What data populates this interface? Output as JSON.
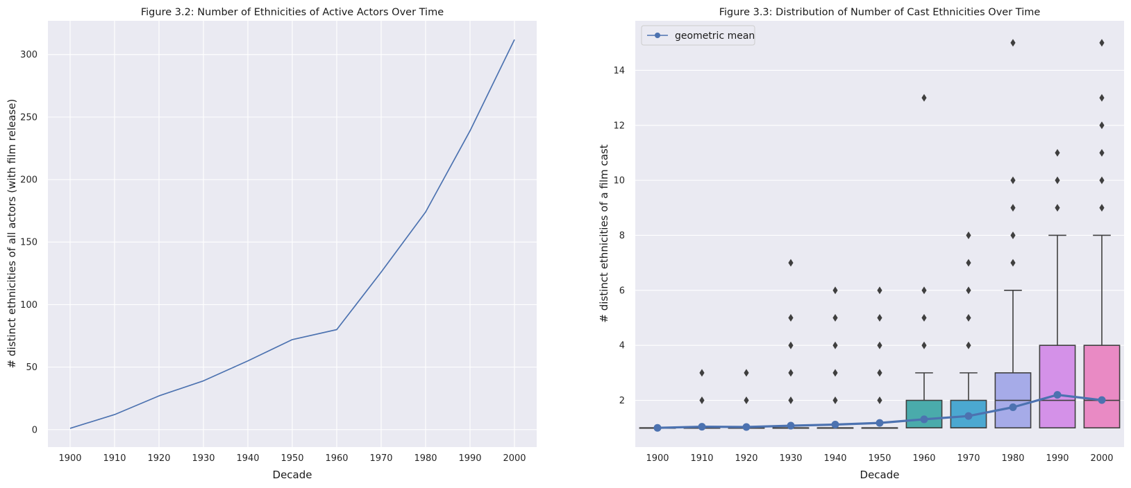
{
  "chart_data": [
    {
      "type": "line",
      "title": "Figure 3.2: Number of Ethnicities of Active Actors Over Time",
      "xlabel": "Decade",
      "ylabel": "# distinct ethnicities of all actors (with film release)",
      "x": [
        1900,
        1910,
        1920,
        1930,
        1940,
        1950,
        1960,
        1970,
        1980,
        1990,
        2000
      ],
      "y": [
        1,
        12,
        27,
        39,
        55,
        72,
        80,
        126,
        174,
        239,
        312
      ],
      "xlim": [
        1895,
        2005
      ],
      "ylim": [
        -14,
        327
      ],
      "yticks": [
        0,
        50,
        100,
        150,
        200,
        250,
        300
      ],
      "grid": true,
      "color": "#4c72b0",
      "background": "#eaeaf2"
    },
    {
      "type": "box",
      "title": "Figure 3.3: Distribution of Number of Cast Ethnicities Over Time",
      "xlabel": "Decade",
      "ylabel": "# distinct ethnicities of a film cast",
      "categories": [
        "1900",
        "1910",
        "1920",
        "1930",
        "1940",
        "1950",
        "1960",
        "1970",
        "1980",
        "1990",
        "2000"
      ],
      "ylim": [
        0.3,
        15.8
      ],
      "yticks": [
        2,
        4,
        6,
        8,
        10,
        12,
        14
      ],
      "grid": true,
      "background": "#eaeaf2",
      "boxes": [
        {
          "q1": 1,
          "median": 1,
          "q3": 1,
          "whislo": 1,
          "whishi": 1,
          "color": "#e3a9a1",
          "fliers": []
        },
        {
          "q1": 1,
          "median": 1,
          "q3": 1,
          "whislo": 1,
          "whishi": 1,
          "color": "#e6b58b",
          "fliers": [
            2,
            3
          ]
        },
        {
          "q1": 1,
          "median": 1,
          "q3": 1,
          "whislo": 1,
          "whishi": 1,
          "color": "#d9c184",
          "fliers": [
            2,
            3
          ]
        },
        {
          "q1": 1,
          "median": 1,
          "q3": 1,
          "whislo": 1,
          "whishi": 1,
          "color": "#b9c57f",
          "fliers": [
            2,
            3,
            4,
            5,
            7
          ]
        },
        {
          "q1": 1,
          "median": 1,
          "q3": 1,
          "whislo": 1,
          "whishi": 1,
          "color": "#92c98a",
          "fliers": [
            2,
            3,
            4,
            5,
            6
          ]
        },
        {
          "q1": 1,
          "median": 1,
          "q3": 1,
          "whislo": 1,
          "whishi": 1,
          "color": "#6dc6a3",
          "fliers": [
            2,
            3,
            4,
            5,
            6
          ]
        },
        {
          "q1": 1,
          "median": 1,
          "q3": 2,
          "whislo": 1,
          "whishi": 3,
          "color": "#4aabab",
          "fliers": [
            4,
            5,
            6,
            13
          ]
        },
        {
          "q1": 1,
          "median": 1,
          "q3": 2,
          "whislo": 1,
          "whishi": 3,
          "color": "#4ba8d1",
          "fliers": [
            4,
            5,
            6,
            7,
            8
          ]
        },
        {
          "q1": 1,
          "median": 2,
          "q3": 3,
          "whislo": 1,
          "whishi": 6,
          "color": "#a6abe8",
          "fliers": [
            7,
            8,
            9,
            10,
            15
          ]
        },
        {
          "q1": 1,
          "median": 2,
          "q3": 4,
          "whislo": 1,
          "whishi": 8,
          "color": "#d491e8",
          "fliers": [
            9,
            10,
            11
          ]
        },
        {
          "q1": 1,
          "median": 2,
          "q3": 4,
          "whislo": 1,
          "whishi": 8,
          "color": "#e98ac4",
          "fliers": [
            9,
            10,
            11,
            12,
            13,
            15
          ]
        }
      ],
      "series": [
        {
          "name": "geometric mean",
          "values": [
            1.0,
            1.04,
            1.03,
            1.08,
            1.12,
            1.18,
            1.31,
            1.43,
            1.75,
            2.2,
            2.01
          ],
          "color": "#4c72b0"
        }
      ],
      "legend": {
        "label": "geometric mean",
        "position": "upper left"
      }
    }
  ]
}
